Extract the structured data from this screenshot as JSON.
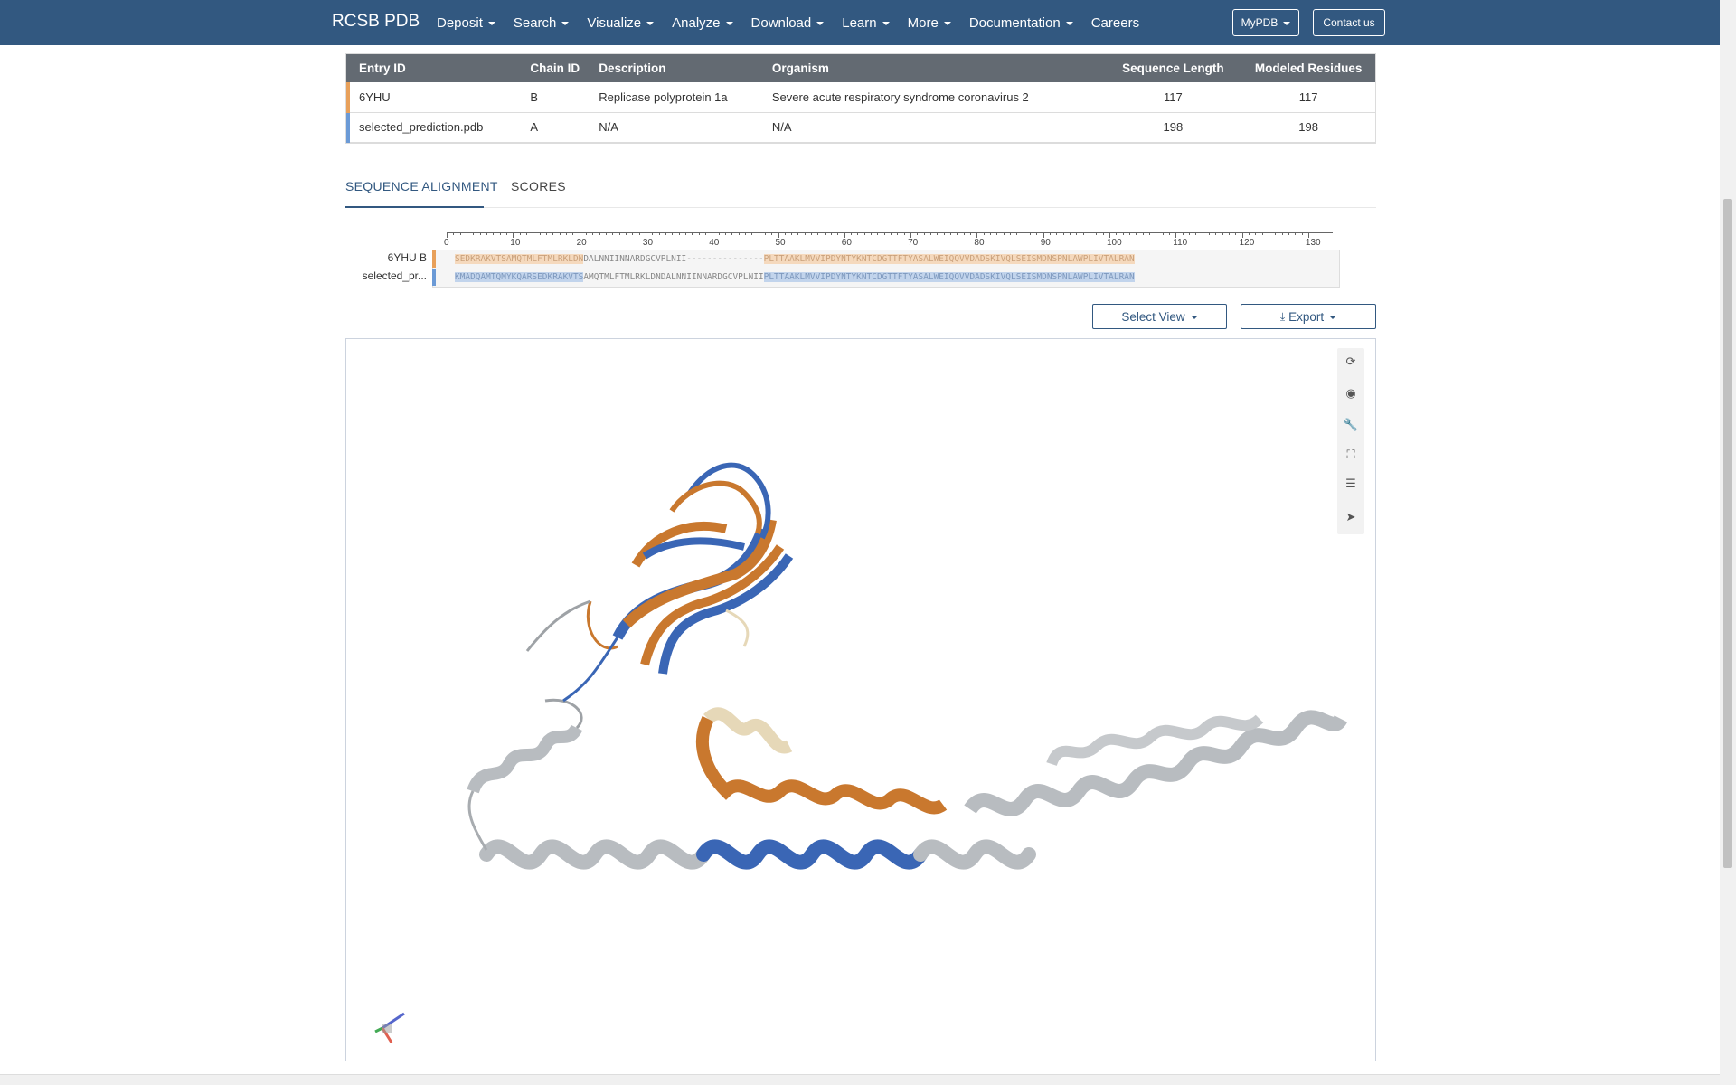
{
  "navbar": {
    "brand": "RCSB PDB",
    "items": [
      {
        "label": "Deposit",
        "dropdown": true
      },
      {
        "label": "Search",
        "dropdown": true
      },
      {
        "label": "Visualize",
        "dropdown": true
      },
      {
        "label": "Analyze",
        "dropdown": true
      },
      {
        "label": "Download",
        "dropdown": true
      },
      {
        "label": "Learn",
        "dropdown": true
      },
      {
        "label": "More",
        "dropdown": true
      },
      {
        "label": "Documentation",
        "dropdown": true
      },
      {
        "label": "Careers",
        "dropdown": false
      }
    ],
    "mypdb": "MyPDB",
    "contact": "Contact us",
    "bg_color": "#325880"
  },
  "table": {
    "headers": [
      "Entry ID",
      "Chain ID",
      "Description",
      "Organism",
      "Sequence Length",
      "Modeled Residues"
    ],
    "rows": [
      {
        "entry_id": "6YHU",
        "chain_id": "B",
        "description": "Replicase polyprotein 1a",
        "organism": "Severe acute respiratory syndrome coronavirus 2",
        "sequence_length": "117",
        "modeled_residues": "117",
        "color": "#e8a05a"
      },
      {
        "entry_id": "selected_prediction.pdb",
        "chain_id": "A",
        "description": "N/A",
        "organism": "N/A",
        "sequence_length": "198",
        "modeled_residues": "198",
        "color": "#6b9ad6"
      }
    ]
  },
  "tabs": {
    "alignment": "SEQUENCE ALIGNMENT",
    "scores": "SCORES"
  },
  "alignment": {
    "ticks": [
      "0",
      "10",
      "20",
      "30",
      "40",
      "50",
      "60",
      "70",
      "80",
      "90",
      "100",
      "110",
      "120",
      "130"
    ],
    "track1_label": "6YHU B",
    "track2_label": "selected_pr...",
    "seq1_a": "SEDKRAKVTSAMQTMLFTMLRKLDN",
    "seq1_b": "DALNNIINNARDGCVPLNII---------------",
    "seq1_c": "PLTTAAKLMVVIPDYNTYKNTCDGTTFTYASALWEIQQVVDADSKIVQLSEISMDNSPNLAWPLIVTALRAN",
    "seq2_a": "KMADQAMTQMYKQARSEDKRAKVTS",
    "seq2_b": "AMQTMLFTMLRKLDNDALNNIINNARDGCVPLNII",
    "seq2_c": "PLTTAAKLMVVIPDYNTYKNTCDGTTFTYASALWEIQQVVDADSKIVQLSEISMDNSPNLAWPLIVTALRAN"
  },
  "controls": {
    "select_view": "Select View",
    "export": "Export"
  },
  "viewer": {
    "toolbar": [
      "reset-icon",
      "screenshot-icon",
      "wrench-icon",
      "fullscreen-icon",
      "settings-icon",
      "pointer-icon"
    ],
    "colors": {
      "orange": "#c9782e",
      "blue": "#3a66b5",
      "gray": "#b8bcc0",
      "beige": "#e6d8b8"
    }
  }
}
